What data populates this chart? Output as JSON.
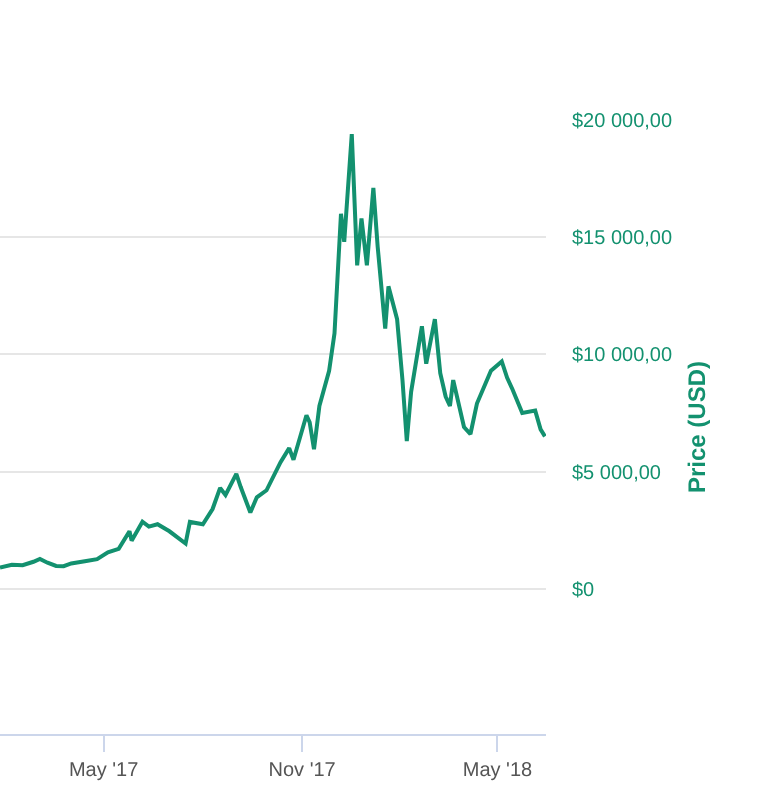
{
  "chart_data": {
    "type": "line",
    "ylabel": "Price (USD)",
    "x": [
      "2017-01-25",
      "2017-02-05",
      "2017-02-15",
      "2017-02-25",
      "2017-03-03",
      "2017-03-10",
      "2017-03-18",
      "2017-03-25",
      "2017-04-01",
      "2017-04-15",
      "2017-04-25",
      "2017-05-05",
      "2017-05-15",
      "2017-05-25",
      "2017-05-27",
      "2017-06-06",
      "2017-06-12",
      "2017-06-20",
      "2017-07-01",
      "2017-07-16",
      "2017-07-20",
      "2017-08-01",
      "2017-08-10",
      "2017-08-17",
      "2017-08-22",
      "2017-09-01",
      "2017-09-05",
      "2017-09-14",
      "2017-09-20",
      "2017-09-29",
      "2017-10-12",
      "2017-10-20",
      "2017-10-24",
      "2017-11-05",
      "2017-11-08",
      "2017-11-12",
      "2017-11-17",
      "2017-11-26",
      "2017-12-01",
      "2017-12-07",
      "2017-12-10",
      "2017-12-17",
      "2017-12-22",
      "2017-12-26",
      "2017-12-31",
      "2018-01-06",
      "2018-01-10",
      "2018-01-17",
      "2018-01-20",
      "2018-01-28",
      "2018-02-02",
      "2018-02-06",
      "2018-02-10",
      "2018-02-20",
      "2018-02-24",
      "2018-03-04",
      "2018-03-09",
      "2018-03-14",
      "2018-03-18",
      "2018-03-21",
      "2018-03-31",
      "2018-04-06",
      "2018-04-12",
      "2018-04-25",
      "2018-05-05",
      "2018-05-10",
      "2018-05-15",
      "2018-05-24",
      "2018-06-05",
      "2018-06-10",
      "2018-06-14"
    ],
    "series": [
      {
        "color": "#13916f",
        "values": [
          900,
          1020,
          1000,
          1150,
          1270,
          1110,
          970,
          960,
          1080,
          1180,
          1260,
          1550,
          1700,
          2450,
          2050,
          2860,
          2650,
          2750,
          2450,
          1930,
          2850,
          2750,
          3400,
          4300,
          4000,
          4900,
          4350,
          3250,
          3900,
          4200,
          5400,
          6000,
          5500,
          7400,
          7100,
          5950,
          7800,
          9300,
          10900,
          16000,
          14800,
          19400,
          13800,
          15800,
          13800,
          17100,
          14600,
          11100,
          12900,
          11500,
          8900,
          6300,
          8400,
          11200,
          9600,
          11500,
          9200,
          8200,
          7800,
          8900,
          6900,
          6600,
          7900,
          9300,
          9700,
          9000,
          8500,
          7500,
          7600,
          6800,
          6500
        ]
      }
    ],
    "xlim": [
      "2017-01-25",
      "2018-06-15"
    ],
    "xticks": [
      {
        "value": "2017-05-01",
        "label": "May '17"
      },
      {
        "value": "2017-11-01",
        "label": "Nov '17"
      },
      {
        "value": "2018-05-01",
        "label": "May '18"
      }
    ],
    "ylim": [
      -6200,
      20000
    ],
    "yticks": [
      {
        "value": 0,
        "label": "$0"
      },
      {
        "value": 5000,
        "label": "$5 000,00"
      },
      {
        "value": 10000,
        "label": "$10 000,00"
      },
      {
        "value": 15000,
        "label": "$15 000,00"
      },
      {
        "value": 20000,
        "label": "$20 000,00"
      }
    ],
    "grid": "y",
    "marker": "none",
    "line_style": "solid"
  }
}
